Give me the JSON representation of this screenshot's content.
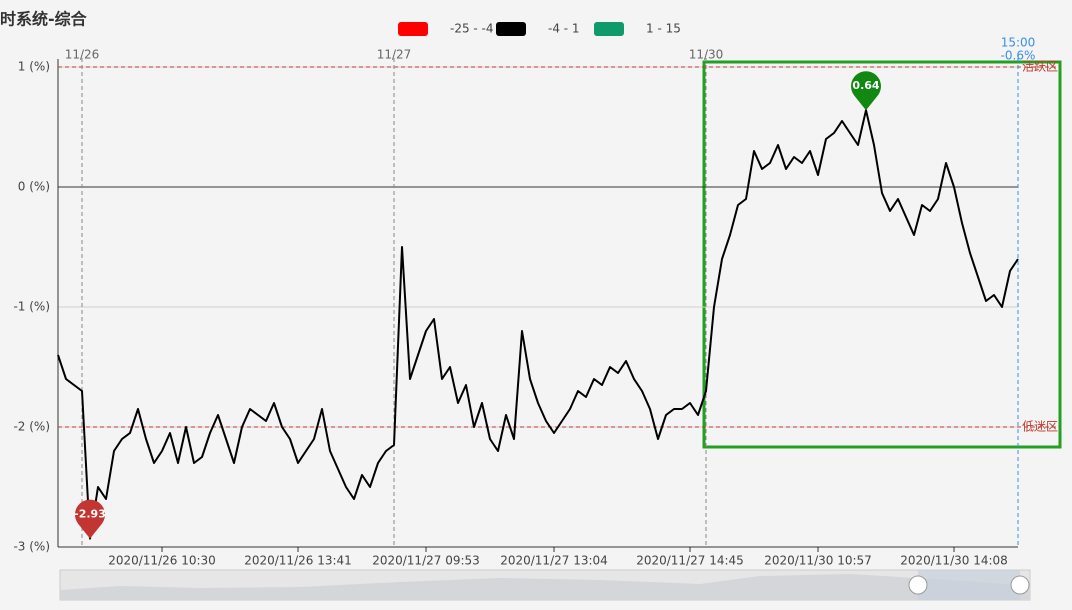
{
  "chart_data": {
    "type": "line",
    "title": "时系统-综合",
    "legend": [
      {
        "label": "-25 - -4",
        "color": "#ff0000"
      },
      {
        "label": "-4 - 1",
        "color": "#000000"
      },
      {
        "label": "1 - 15",
        "color": "#0e9a6a"
      }
    ],
    "color": "#000000",
    "ylim": [
      -3,
      1
    ],
    "yticks": [
      {
        "value": 1,
        "label": "1 (%)"
      },
      {
        "value": 0,
        "label": "0 (%)"
      },
      {
        "value": -1,
        "label": "-1 (%)"
      },
      {
        "value": -2,
        "label": "-2 (%)"
      },
      {
        "value": -3,
        "label": "-3 (%)"
      }
    ],
    "grid": true,
    "zones": [
      {
        "label": "活跃区",
        "value": 1
      },
      {
        "label": "低迷区",
        "value": -2
      }
    ],
    "end_label": "15:00",
    "end_value_label": "-0.6%",
    "categories": [
      null,
      null,
      null,
      null,
      null,
      null,
      null,
      null,
      null,
      null,
      null,
      null,
      null,
      "2020/11/26 10:30",
      null,
      null,
      null,
      null,
      null,
      null,
      null,
      null,
      null,
      null,
      null,
      null,
      null,
      null,
      null,
      null,
      "2020/11/26 13:41",
      null,
      null,
      null,
      null,
      null,
      null,
      null,
      null,
      null,
      null,
      null,
      null,
      null,
      null,
      null,
      "2020/11/27 09:53",
      null,
      null,
      null,
      null,
      null,
      null,
      null,
      null,
      null,
      null,
      null,
      null,
      null,
      null,
      null,
      "2020/11/27 13:04",
      null,
      null,
      null,
      null,
      null,
      null,
      null,
      null,
      null,
      null,
      null,
      null,
      null,
      null,
      null,
      null,
      "2020/11/27 14:45",
      null,
      null,
      null,
      null,
      null,
      null,
      null,
      null,
      null,
      null,
      null,
      null,
      null,
      null,
      null,
      "2020/11/30 10:57",
      null,
      null,
      null,
      null,
      null,
      null,
      null,
      null,
      null,
      null,
      null,
      null,
      null,
      null,
      null,
      null,
      "2020/11/30 14:08",
      null,
      null,
      null,
      null,
      null,
      null,
      null,
      null
    ],
    "day_labels": [
      null,
      null,
      null,
      "11/26",
      null,
      null,
      null,
      null,
      null,
      null,
      null,
      null,
      null,
      null,
      null,
      null,
      null,
      null,
      null,
      null,
      null,
      null,
      null,
      null,
      null,
      null,
      null,
      null,
      null,
      null,
      null,
      null,
      null,
      null,
      null,
      null,
      null,
      null,
      null,
      null,
      null,
      null,
      "11/27",
      null,
      null,
      null,
      null,
      null,
      null,
      null,
      null,
      null,
      null,
      null,
      null,
      null,
      null,
      null,
      null,
      null,
      null,
      null,
      null,
      null,
      null,
      null,
      null,
      null,
      null,
      null,
      null,
      null,
      null,
      null,
      null,
      null,
      null,
      null,
      null,
      null,
      null,
      "11/30",
      null,
      null,
      null,
      null,
      null,
      null,
      null,
      null,
      null,
      null,
      null,
      null,
      null,
      null,
      null,
      null,
      null,
      null,
      null,
      null,
      null,
      null,
      null,
      null,
      null,
      null,
      null,
      null,
      null,
      null,
      null,
      null,
      null,
      null,
      null,
      null,
      null,
      null,
      null
    ],
    "values": [
      -1.4,
      -1.6,
      -1.65,
      -1.7,
      -2.93,
      -2.5,
      -2.6,
      -2.2,
      -2.1,
      -2.05,
      -1.85,
      -2.1,
      -2.3,
      -2.2,
      -2.05,
      -2.3,
      -2.0,
      -2.3,
      -2.25,
      -2.05,
      -1.9,
      -2.1,
      -2.3,
      -2.0,
      -1.85,
      -1.9,
      -1.95,
      -1.8,
      -2.0,
      -2.1,
      -2.3,
      -2.2,
      -2.1,
      -1.85,
      -2.2,
      -2.35,
      -2.5,
      -2.6,
      -2.4,
      -2.5,
      -2.3,
      -2.2,
      -2.15,
      -0.5,
      -1.6,
      -1.4,
      -1.2,
      -1.1,
      -1.6,
      -1.5,
      -1.8,
      -1.65,
      -2.0,
      -1.8,
      -2.1,
      -2.2,
      -1.9,
      -2.1,
      -1.2,
      -1.6,
      -1.8,
      -1.95,
      -2.05,
      -1.95,
      -1.85,
      -1.7,
      -1.75,
      -1.6,
      -1.65,
      -1.5,
      -1.55,
      -1.45,
      -1.6,
      -1.7,
      -1.85,
      -2.1,
      -1.9,
      -1.85,
      -1.85,
      -1.8,
      -1.9,
      -1.7,
      -1.0,
      -0.6,
      -0.4,
      -0.15,
      -0.1,
      0.3,
      0.15,
      0.2,
      0.35,
      0.15,
      0.25,
      0.2,
      0.3,
      0.1,
      0.4,
      0.45,
      0.55,
      0.45,
      0.35,
      0.64,
      0.35,
      -0.05,
      -0.2,
      -0.1,
      -0.25,
      -0.4,
      -0.15,
      -0.2,
      -0.1,
      0.2,
      0.0,
      -0.3,
      -0.55,
      -0.75,
      -0.95,
      -0.9,
      -1.0,
      -0.7,
      -0.6
    ]
  }
}
